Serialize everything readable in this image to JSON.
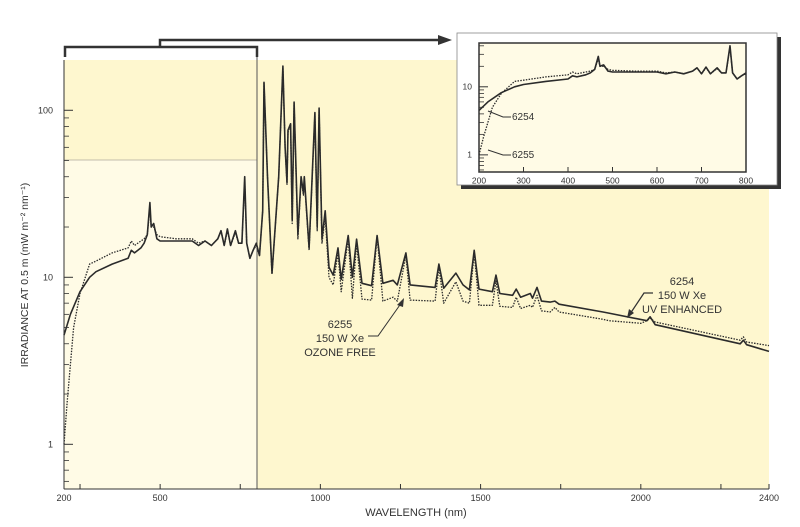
{
  "chart_data": {
    "type": "line",
    "title": "",
    "xlabel": "WAVELENGTH (nm)",
    "ylabel": "IRRADIANCE AT 0.5 m (mW m⁻² nm⁻¹)",
    "xlim": [
      200,
      2400
    ],
    "ylim": [
      0.54,
      200
    ],
    "yscale": "log",
    "xticks": [
      200,
      500,
      1000,
      1500,
      2000,
      2400
    ],
    "xtick_labels": [
      "200",
      "500",
      "1000",
      "1500",
      "2000",
      "2400"
    ],
    "yticks": [
      1,
      10,
      100
    ],
    "ytick_labels": [
      "1",
      "10",
      "100"
    ],
    "grid": false,
    "series": [
      {
        "name": "6254",
        "style": "solid",
        "x": [
          200,
          220,
          250,
          280,
          300,
          350,
          400,
          410,
          420,
          440,
          450,
          460,
          468,
          472,
          480,
          490,
          500,
          550,
          600,
          620,
          640,
          660,
          680,
          690,
          700,
          710,
          720,
          735,
          745,
          755,
          764,
          770,
          780,
          790,
          800,
          810,
          820,
          824,
          835,
          849,
          870,
          883,
          890,
          896,
          899,
          907,
          912,
          918,
          930,
          940,
          947,
          950,
          965,
          983,
          990,
          996,
          1005,
          1015,
          1027,
          1040,
          1055,
          1065,
          1087,
          1100,
          1113,
          1130,
          1160,
          1177,
          1195,
          1227,
          1240,
          1267,
          1280,
          1358,
          1370,
          1385,
          1423,
          1445,
          1465,
          1480,
          1495,
          1537,
          1548,
          1560,
          1600,
          1611,
          1625,
          1655,
          1662,
          1676,
          1690,
          1717,
          1732,
          1745,
          1882,
          1900,
          2019,
          2029,
          2045,
          2310,
          2320,
          2330,
          2400
        ],
        "y": [
          4.5,
          6,
          8.2,
          10,
          10.8,
          12,
          13,
          14.5,
          14,
          15,
          16,
          18,
          28,
          20,
          21,
          17,
          16.5,
          16.5,
          16.5,
          15.5,
          16.5,
          15.5,
          17,
          19,
          15.5,
          19.5,
          15.5,
          19,
          16,
          16,
          40,
          16,
          13,
          14.5,
          16,
          13.5,
          25,
          147,
          40,
          10.6,
          40,
          184,
          60,
          37,
          76,
          83,
          22,
          112,
          18,
          40,
          32,
          40,
          15,
          97,
          20,
          103,
          17,
          25,
          11.5,
          10.3,
          15,
          9.7,
          17.8,
          10,
          16.9,
          9.2,
          8.9,
          17.8,
          9.2,
          9.6,
          9,
          14,
          9,
          8.7,
          12,
          8.6,
          10.6,
          9,
          8.4,
          14.5,
          8.5,
          8.2,
          10.3,
          8,
          7.8,
          8.5,
          7.6,
          8,
          7.5,
          8.7,
          7.2,
          7.1,
          7.2,
          6.9,
          6.2,
          6.1,
          5.5,
          5.8,
          5.2,
          4,
          4.2,
          3.95,
          3.6
        ]
      },
      {
        "name": "6255",
        "style": "dotted",
        "x": [
          200,
          210,
          230,
          250,
          280,
          300,
          350,
          400,
          410,
          420,
          440,
          450,
          460,
          468,
          472,
          480,
          490,
          500,
          550,
          600,
          620,
          640,
          660,
          680,
          690,
          700,
          710,
          720,
          735,
          745,
          755,
          764,
          770,
          780,
          790,
          800,
          810,
          820,
          824,
          835,
          849,
          870,
          883,
          890,
          896,
          899,
          907,
          912,
          918,
          930,
          940,
          947,
          950,
          965,
          983,
          990,
          996,
          1005,
          1015,
          1027,
          1040,
          1055,
          1065,
          1087,
          1100,
          1113,
          1130,
          1160,
          1177,
          1195,
          1227,
          1240,
          1267,
          1280,
          1358,
          1370,
          1385,
          1423,
          1445,
          1465,
          1480,
          1495,
          1537,
          1548,
          1560,
          1600,
          1611,
          1625,
          1655,
          1662,
          1676,
          1690,
          1717,
          1732,
          1745,
          1882,
          1900,
          2000,
          2019,
          2029,
          2045,
          2310,
          2320,
          2330,
          2400
        ],
        "y": [
          1,
          1.8,
          5,
          8,
          12,
          12.5,
          14,
          15,
          16.5,
          15.5,
          16.5,
          17,
          18,
          26,
          20,
          20,
          18,
          17.5,
          17,
          17,
          16,
          16.5,
          15.5,
          17,
          19,
          15.5,
          19,
          15.5,
          18.5,
          16,
          16,
          38,
          16,
          13,
          14.5,
          15.5,
          13.5,
          25,
          145,
          40,
          10.4,
          40,
          180,
          60,
          36,
          74,
          82,
          21,
          110,
          17,
          39,
          31,
          39,
          14.5,
          95,
          19,
          100,
          16,
          23,
          10,
          9,
          14,
          8.2,
          17,
          7.5,
          16,
          7.4,
          7.3,
          17.5,
          7.2,
          7.6,
          7.2,
          13.5,
          7.3,
          7.2,
          11.5,
          7,
          9.4,
          7.2,
          7,
          14,
          6.8,
          6.8,
          9.5,
          6.7,
          6.6,
          7.6,
          6.5,
          6.8,
          6.6,
          7.8,
          6.3,
          6.2,
          6.6,
          6.2,
          5.6,
          5.5,
          5.3,
          5.5,
          5.7,
          5.4,
          4.2,
          4.4,
          4.1,
          3.9
        ]
      }
    ],
    "annotations": [
      {
        "target": "6255",
        "lines": [
          "6255",
          "150 W Xe",
          "OZONE FREE"
        ]
      },
      {
        "target": "6254",
        "lines": [
          "6254",
          "150 W Xe",
          "UV ENHANCED"
        ]
      }
    ],
    "inset": {
      "xlim": [
        200,
        800
      ],
      "ylim": [
        0.56,
        44
      ],
      "yscale": "log",
      "xticks": [
        200,
        300,
        400,
        500,
        600,
        700,
        800
      ],
      "xtick_labels": [
        "200",
        "300",
        "400",
        "500",
        "600",
        "700",
        "800"
      ],
      "yticks": [
        1,
        10
      ],
      "ytick_labels": [
        "1",
        "10"
      ],
      "labels": [
        "6254",
        "6255"
      ]
    }
  },
  "colors": {
    "plot_bg": "#fef7cf",
    "visible_bg": "#fffbe6",
    "line": "#2b2b2b",
    "axis": "#333333"
  }
}
